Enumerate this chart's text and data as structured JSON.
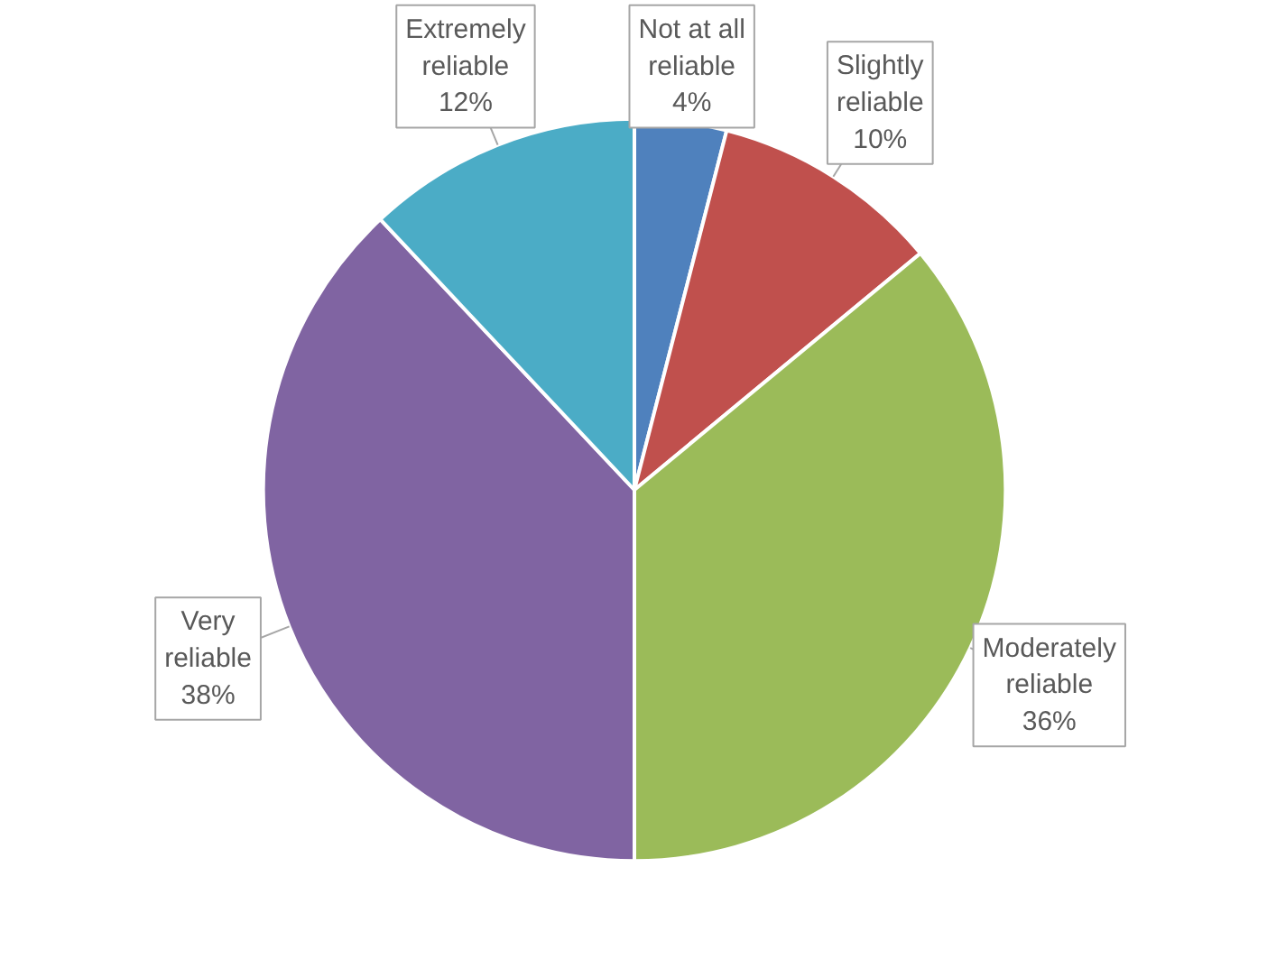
{
  "chart_data": {
    "type": "pie",
    "categories": [
      "Not at all reliable",
      "Slightly reliable",
      "Moderately reliable",
      "Very reliable",
      "Extremely reliable"
    ],
    "values": [
      4,
      10,
      36,
      38,
      12
    ],
    "value_labels": [
      "4%",
      "10%",
      "36%",
      "38%",
      "12%"
    ],
    "colors": [
      "#4f81bd",
      "#c0504d",
      "#9bbb59",
      "#8064a2",
      "#4bacc6"
    ]
  }
}
